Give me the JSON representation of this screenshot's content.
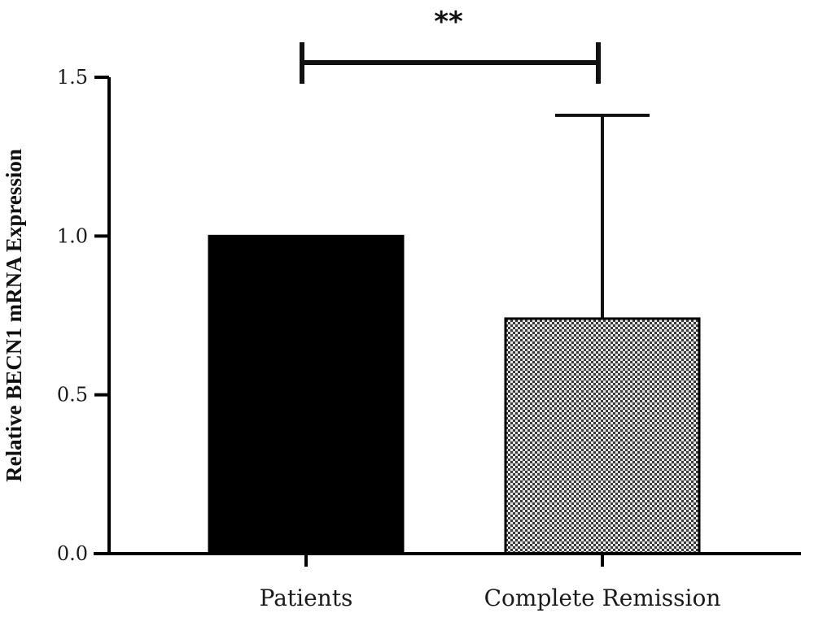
{
  "chart_data": {
    "type": "bar",
    "title": "",
    "xlabel": "",
    "ylabel": "Relative BECN1 mRNA Expression",
    "ylim": [
      0,
      1.5
    ],
    "yticks": [
      "0.0",
      "0.5",
      "1.0",
      "1.5"
    ],
    "categories": [
      "Patients",
      "Complete Remission"
    ],
    "values": [
      1.0,
      0.74
    ],
    "error_upper": [
      0,
      1.38
    ],
    "bar_styles": [
      {
        "fill": "#000000",
        "pattern": "solid"
      },
      {
        "fill": "#555555",
        "pattern": "checkered"
      }
    ],
    "significance": {
      "between": [
        0,
        1
      ],
      "label": "**"
    },
    "grid": false,
    "legend": "none"
  }
}
